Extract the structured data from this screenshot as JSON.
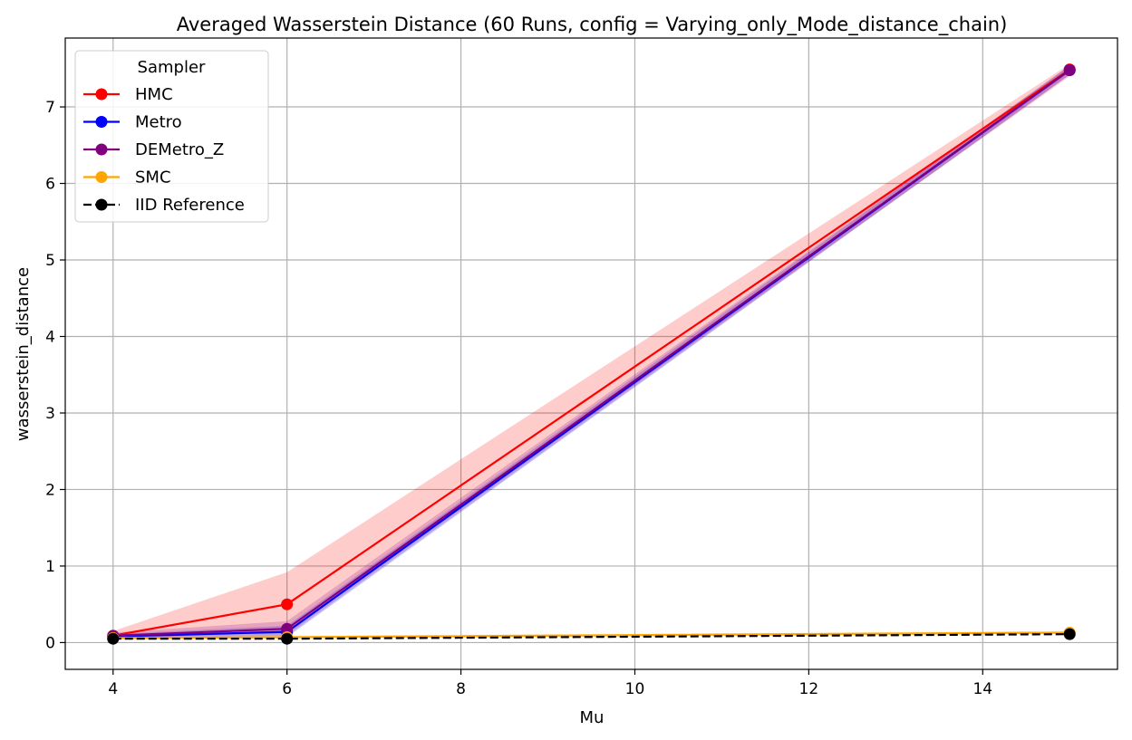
{
  "chart_data": {
    "type": "line",
    "title": "Averaged Wasserstein Distance (60 Runs, config = Varying_only_Mode_distance_chain)",
    "xlabel": "Mu",
    "ylabel": "wasserstein_distance",
    "x": [
      4,
      6,
      15
    ],
    "xlim": [
      3.45,
      15.55
    ],
    "ylim": [
      -0.35,
      7.9
    ],
    "xticks": [
      4,
      6,
      8,
      10,
      12,
      14
    ],
    "yticks": [
      0,
      1,
      2,
      3,
      4,
      5,
      6,
      7
    ],
    "grid": true,
    "legend": {
      "title": "Sampler",
      "position": "top-left"
    },
    "series": [
      {
        "name": "HMC",
        "color": "#ff0000",
        "marker": "o",
        "linestyle": "solid",
        "values": [
          0.09,
          0.5,
          7.49
        ],
        "band_low": [
          0.04,
          0.15,
          7.4
        ],
        "band_high": [
          0.15,
          0.92,
          7.56
        ]
      },
      {
        "name": "Metro",
        "color": "#0000ff",
        "marker": "o",
        "linestyle": "solid",
        "values": [
          0.08,
          0.14,
          7.48
        ],
        "band_low": [
          0.05,
          0.07,
          7.42
        ],
        "band_high": [
          0.11,
          0.22,
          7.54
        ]
      },
      {
        "name": "DEMetro_Z",
        "color": "#800080",
        "marker": "o",
        "linestyle": "solid",
        "values": [
          0.09,
          0.18,
          7.48
        ],
        "band_low": [
          0.05,
          0.09,
          7.42
        ],
        "band_high": [
          0.13,
          0.28,
          7.54
        ]
      },
      {
        "name": "SMC",
        "color": "#ffa500",
        "marker": "o",
        "linestyle": "solid",
        "values": [
          0.06,
          0.07,
          0.13
        ],
        "band_low": [
          0.04,
          0.05,
          0.11
        ],
        "band_high": [
          0.08,
          0.09,
          0.15
        ]
      },
      {
        "name": "IID Reference",
        "color": "#000000",
        "marker": "o",
        "linestyle": "dashed",
        "values": [
          0.05,
          0.05,
          0.11
        ]
      }
    ]
  }
}
